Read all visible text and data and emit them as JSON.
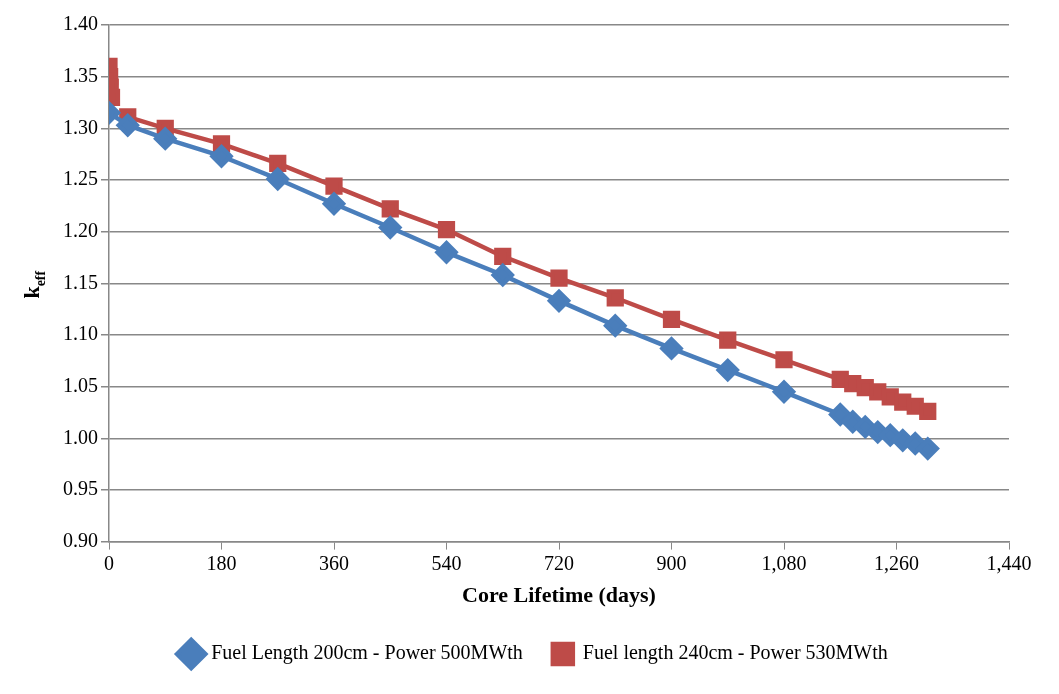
{
  "chart_data": {
    "type": "line",
    "xlabel": "Core Lifetime (days)",
    "ylabel": "k$_{eff}$",
    "xlim": [
      0,
      1440
    ],
    "xticks": [
      0,
      180,
      360,
      540,
      720,
      900,
      {
        "value": 1080,
        "label": "1,080"
      },
      {
        "value": 1260,
        "label": "1,260"
      },
      {
        "value": 1440,
        "label": "1,440"
      }
    ],
    "ylim": [
      0.9,
      1.4
    ],
    "yticks": [
      {
        "value": 0.9,
        "label": "0.90"
      },
      {
        "value": 0.95,
        "label": "0.95"
      },
      {
        "value": 1.0,
        "label": "1.00"
      },
      {
        "value": 1.05,
        "label": "1.05"
      },
      {
        "value": 1.1,
        "label": "1.10"
      },
      {
        "value": 1.15,
        "label": "1.15"
      },
      {
        "value": 1.2,
        "label": "1.20"
      },
      {
        "value": 1.25,
        "label": "1.25"
      },
      {
        "value": 1.3,
        "label": "1.30"
      },
      {
        "value": 1.35,
        "label": "1.35"
      },
      {
        "value": 1.4,
        "label": "1.40"
      }
    ],
    "grid": "y",
    "legend": "bottom",
    "line_style": "solid",
    "series": [
      {
        "name": "Fuel Length 200cm - Power 500MWth",
        "color": "#4a7ebb",
        "marker": "diamond",
        "x": [
          0,
          30,
          90,
          180,
          270,
          360,
          450,
          540,
          630,
          720,
          810,
          900,
          990,
          1080,
          1170,
          1190,
          1210,
          1230,
          1250,
          1270,
          1290,
          1310
        ],
        "values": [
          1.315,
          1.303,
          1.29,
          1.273,
          1.251,
          1.227,
          1.204,
          1.18,
          1.158,
          1.133,
          1.109,
          1.087,
          1.066,
          1.045,
          1.023,
          1.016,
          1.011,
          1.006,
          1.003,
          0.998,
          0.995,
          0.99
        ]
      },
      {
        "name": "Fuel length 240cm - Power 530MWth",
        "color": "#be4b48",
        "marker": "square",
        "x": [
          0,
          1,
          2,
          4,
          7,
          30,
          90,
          180,
          270,
          360,
          450,
          540,
          630,
          720,
          810,
          900,
          990,
          1080,
          1170,
          1190,
          1210,
          1230,
          1250,
          1270,
          1290,
          1310
        ],
        "values": [
          1.36,
          1.35,
          1.34,
          1.33,
          null,
          1.311,
          1.3,
          1.285,
          1.266,
          1.244,
          1.222,
          1.202,
          1.176,
          1.155,
          1.136,
          1.115,
          1.095,
          1.076,
          1.057,
          1.053,
          1.049,
          1.045,
          1.04,
          1.035,
          1.031,
          1.026
        ]
      }
    ]
  }
}
